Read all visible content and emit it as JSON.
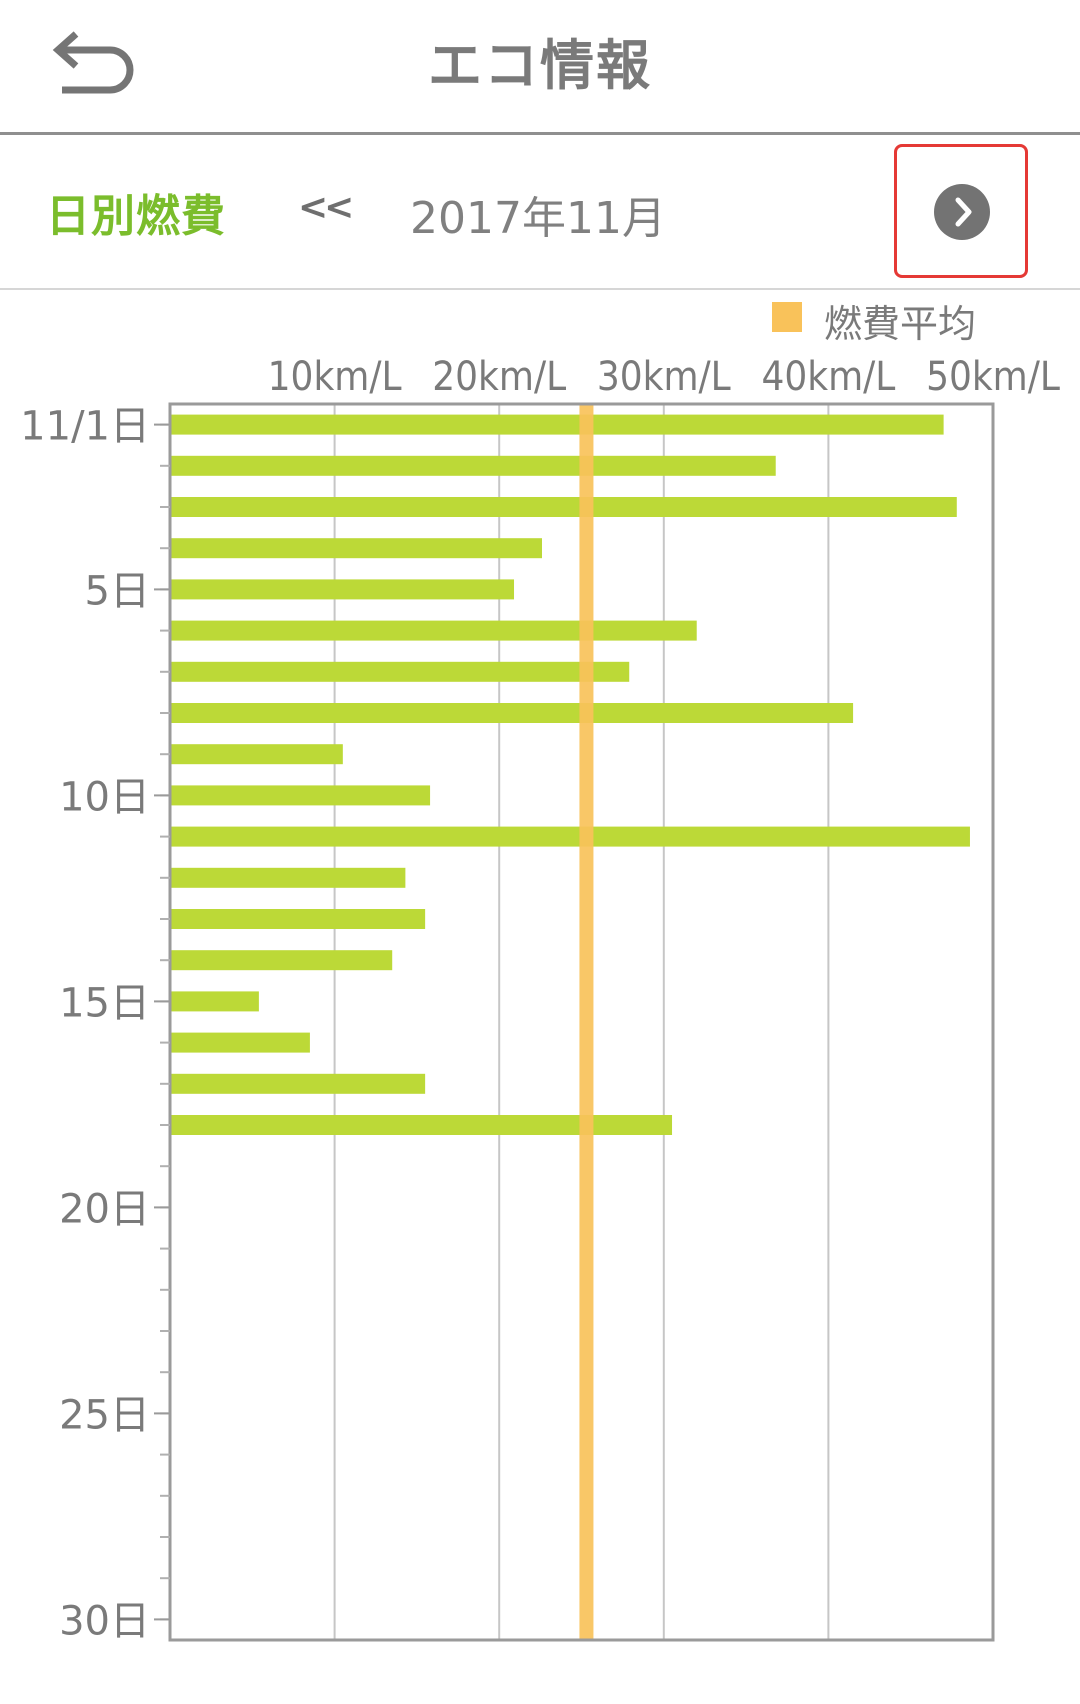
{
  "header": {
    "title": "エコ情報",
    "back_icon": "back-arrow-icon"
  },
  "subbar": {
    "title": "日別燃費",
    "prev_label": "<<",
    "month": "2017年11月",
    "next_icon": "chevron-right-icon"
  },
  "legend": {
    "label": "燃費平均",
    "color": "#f9c25a"
  },
  "colors": {
    "bar": "#bcd937",
    "average": "#f9c25a",
    "accent_green": "#7bbd2c",
    "highlight_box": "#e53935"
  },
  "chart_data": {
    "type": "bar",
    "orientation": "horizontal",
    "x_tick_labels": [
      "10km/L",
      "20km/L",
      "30km/L",
      "40km/L",
      "50km/L"
    ],
    "x_ticks": [
      10,
      20,
      30,
      40,
      50
    ],
    "xlim": [
      0,
      50
    ],
    "y_tick_labels": [
      "11/1日",
      "5日",
      "10日",
      "15日",
      "20日",
      "25日",
      "30日"
    ],
    "y_tick_days": [
      1,
      5,
      10,
      15,
      20,
      25,
      30
    ],
    "days": [
      1,
      2,
      3,
      4,
      5,
      6,
      7,
      8,
      9,
      10,
      11,
      12,
      13,
      14,
      15,
      16,
      17,
      18
    ],
    "values": [
      47.0,
      36.8,
      47.8,
      22.6,
      20.9,
      32.0,
      27.9,
      41.5,
      10.5,
      15.8,
      48.6,
      14.3,
      15.5,
      13.5,
      5.4,
      8.5,
      15.5,
      30.5
    ],
    "average": 25.3,
    "grid": true,
    "legend_position": "top-right"
  }
}
